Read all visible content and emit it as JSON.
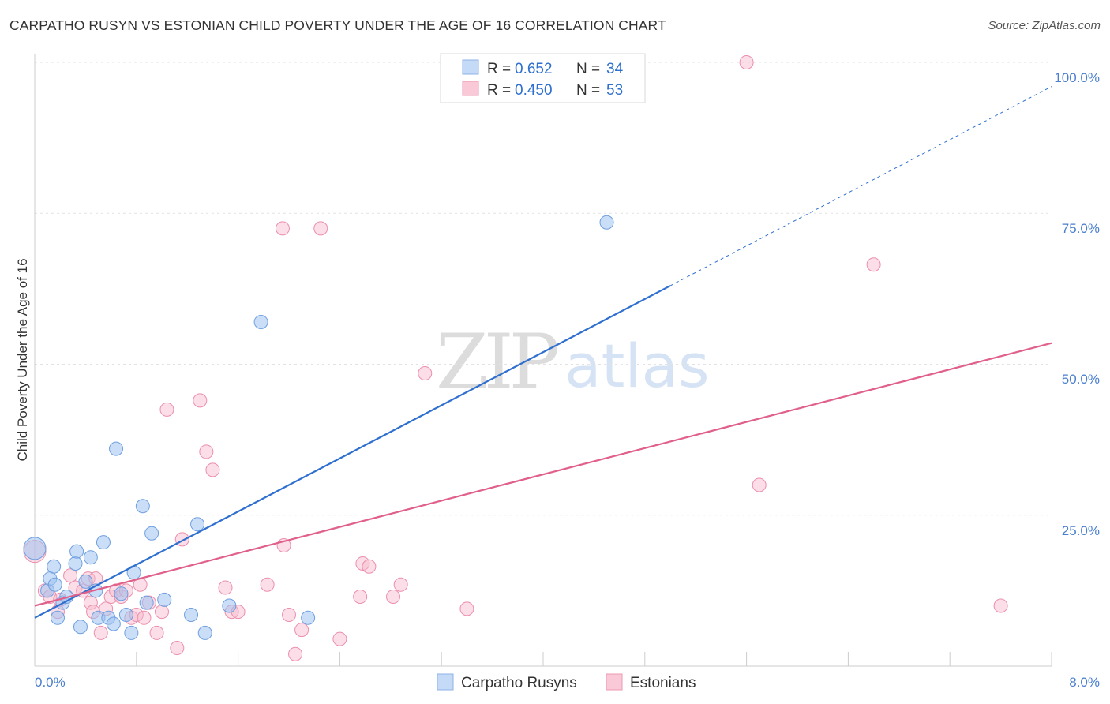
{
  "chart_data": {
    "type": "scatter",
    "title": "CARPATHO RUSYN VS ESTONIAN CHILD POVERTY UNDER THE AGE OF 16 CORRELATION CHART",
    "source": "Source: ZipAtlas.com",
    "ylabel": "Child Poverty Under the Age of 16",
    "xlabel": "",
    "xlim": [
      0,
      8
    ],
    "ylim": [
      0,
      100
    ],
    "x_tick_labels": [
      "0.0%",
      "8.0%"
    ],
    "y_tick_labels": [
      "100.0%",
      "75.0%",
      "50.0%",
      "25.0%"
    ],
    "y_tick_values": [
      100,
      75,
      50,
      25
    ],
    "watermark": {
      "part1": "ZIP",
      "part2": "atlas"
    },
    "legend": [
      {
        "r_label": "R =",
        "r_value": "0.652",
        "n_label": "N =",
        "n_value": "34"
      },
      {
        "r_label": "R =",
        "r_value": "0.450",
        "n_label": "N =",
        "n_value": "53"
      }
    ],
    "series": [
      {
        "name": "Carpatho Rusyns",
        "color": "#9fc3f0",
        "line_color": "#2e6fcf",
        "trend": {
          "x0": 0,
          "y0": 8.0,
          "x1": 5.0,
          "y1": 63.0,
          "dash_to_x": 8.0,
          "dash_to_y": 96.0
        },
        "points": [
          [
            0.0,
            19.5
          ],
          [
            0.1,
            12.5
          ],
          [
            0.12,
            14.5
          ],
          [
            0.15,
            16.5
          ],
          [
            0.18,
            8.0
          ],
          [
            0.22,
            10.5
          ],
          [
            0.25,
            11.5
          ],
          [
            0.32,
            17.0
          ],
          [
            0.33,
            19.0
          ],
          [
            0.36,
            6.5
          ],
          [
            0.4,
            14.0
          ],
          [
            0.44,
            18.0
          ],
          [
            0.48,
            12.5
          ],
          [
            0.5,
            8.0
          ],
          [
            0.54,
            20.5
          ],
          [
            0.58,
            8.0
          ],
          [
            0.62,
            7.0
          ],
          [
            0.64,
            36.0
          ],
          [
            0.68,
            12.0
          ],
          [
            0.72,
            8.5
          ],
          [
            0.76,
            5.5
          ],
          [
            0.78,
            15.5
          ],
          [
            0.85,
            26.5
          ],
          [
            0.88,
            10.5
          ],
          [
            0.92,
            22.0
          ],
          [
            1.02,
            11.0
          ],
          [
            1.23,
            8.5
          ],
          [
            1.28,
            23.5
          ],
          [
            1.34,
            5.5
          ],
          [
            1.53,
            10.0
          ],
          [
            1.78,
            57.0
          ],
          [
            2.15,
            8.0
          ],
          [
            4.5,
            73.5
          ],
          [
            0.16,
            13.5
          ]
        ]
      },
      {
        "name": "Estonians",
        "color": "#f7b6c9",
        "line_color": "#e0608a",
        "trend": {
          "x0": 0,
          "y0": 10.0,
          "x1": 8.0,
          "y1": 53.5
        },
        "points": [
          [
            0.0,
            19.0
          ],
          [
            0.08,
            12.5
          ],
          [
            0.12,
            11.5
          ],
          [
            0.18,
            9.0
          ],
          [
            0.2,
            11.0
          ],
          [
            0.28,
            15.0
          ],
          [
            0.32,
            13.0
          ],
          [
            0.38,
            12.5
          ],
          [
            0.42,
            14.5
          ],
          [
            0.44,
            10.5
          ],
          [
            0.46,
            9.0
          ],
          [
            0.48,
            14.5
          ],
          [
            0.52,
            5.5
          ],
          [
            0.56,
            9.5
          ],
          [
            0.6,
            11.5
          ],
          [
            0.64,
            12.5
          ],
          [
            0.68,
            11.5
          ],
          [
            0.72,
            12.5
          ],
          [
            0.76,
            8.0
          ],
          [
            0.8,
            8.5
          ],
          [
            0.83,
            13.5
          ],
          [
            0.86,
            8.0
          ],
          [
            0.9,
            10.5
          ],
          [
            0.96,
            5.5
          ],
          [
            1.0,
            9.0
          ],
          [
            1.04,
            42.5
          ],
          [
            1.12,
            3.0
          ],
          [
            1.16,
            21.0
          ],
          [
            1.3,
            44.0
          ],
          [
            1.35,
            35.5
          ],
          [
            1.4,
            32.5
          ],
          [
            1.5,
            13.0
          ],
          [
            1.55,
            9.0
          ],
          [
            1.6,
            9.0
          ],
          [
            1.83,
            13.5
          ],
          [
            1.95,
            72.5
          ],
          [
            1.96,
            20.0
          ],
          [
            2.0,
            8.5
          ],
          [
            2.05,
            2.0
          ],
          [
            2.1,
            6.0
          ],
          [
            2.25,
            72.5
          ],
          [
            2.4,
            4.5
          ],
          [
            2.56,
            11.5
          ],
          [
            2.58,
            17.0
          ],
          [
            2.63,
            16.5
          ],
          [
            2.82,
            11.5
          ],
          [
            2.88,
            13.5
          ],
          [
            3.07,
            48.5
          ],
          [
            3.4,
            9.5
          ],
          [
            5.6,
            100.0
          ],
          [
            5.7,
            30.0
          ],
          [
            6.6,
            66.5
          ],
          [
            7.6,
            10.0
          ]
        ]
      }
    ]
  }
}
